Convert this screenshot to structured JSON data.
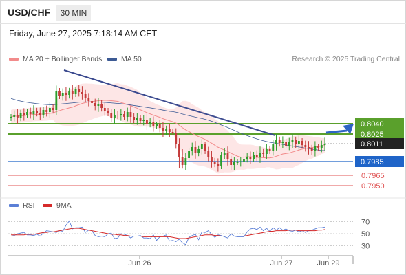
{
  "header": {
    "symbol": "USD/CHF",
    "timeframe": "30 MIN",
    "datetime": "Friday, June 27, 2025 7:18:14 AM CET"
  },
  "legend": {
    "ma_bb_label": "MA 20 + Bollinger Bands",
    "ma50_label": "MA 50",
    "credit": "Research © 2025 Trading Central"
  },
  "rsi_legend": {
    "rsi_label": "RSI",
    "ma_label": "9MA"
  },
  "colors": {
    "candle_up": "#2a9d2a",
    "candle_down": "#c43a3a",
    "ma20": "#f28b8b",
    "ma50": "#3c5a94",
    "bollinger_fill": "#fde3e3",
    "resistance": "#5aa02c",
    "pivot": "#1f64c8",
    "support": "#e05555",
    "trendline": "#3b4a8f",
    "arrow": "#2e64c4",
    "rsi": "#5b7fd6",
    "rsi_ma": "#d62b2b"
  },
  "chart_data": [
    {
      "type": "candlestick",
      "ylim": [
        0.7935,
        0.812
      ],
      "x_ticks": [
        "Jun 26",
        "Jun 27",
        "Jun 29"
      ],
      "last_price": 0.8011,
      "last_price_label": "0.8011",
      "levels": [
        {
          "value": 0.804,
          "label": "0.8040",
          "kind": "resistance"
        },
        {
          "value": 0.8025,
          "label": "0.8025",
          "kind": "resistance"
        },
        {
          "value": 0.7985,
          "label": "0.7985",
          "kind": "pivot"
        },
        {
          "value": 0.7965,
          "label": "0.7965",
          "kind": "support"
        },
        {
          "value": 0.795,
          "label": "0.7950",
          "kind": "support"
        }
      ],
      "closes": [
        0.805,
        0.8053,
        0.8049,
        0.8055,
        0.8052,
        0.8057,
        0.8054,
        0.8058,
        0.8056,
        0.8053,
        0.806,
        0.8057,
        0.8063,
        0.806,
        0.8088,
        0.808,
        0.8085,
        0.8082,
        0.8087,
        0.8083,
        0.809,
        0.8086,
        0.8084,
        0.8077,
        0.8073,
        0.807,
        0.8066,
        0.8069,
        0.8063,
        0.8059,
        0.8055,
        0.8049,
        0.8053,
        0.8052,
        0.8054,
        0.805,
        0.8057,
        0.805,
        0.8046,
        0.8048,
        0.8044,
        0.8046,
        0.804,
        0.8043,
        0.8036,
        0.8039,
        0.8034,
        0.8029,
        0.8032,
        0.8028,
        0.8027,
        0.801,
        0.7992,
        0.798,
        0.799,
        0.8,
        0.8006,
        0.7998,
        0.8003,
        0.801,
        0.8,
        0.7992,
        0.7985,
        0.7982,
        0.7978,
        0.7995,
        0.7998,
        0.7988,
        0.798,
        0.7984,
        0.7984,
        0.7985,
        0.7989,
        0.7992,
        0.7989,
        0.7995,
        0.7992,
        0.7998,
        0.7996,
        0.8003,
        0.8,
        0.801,
        0.8016,
        0.8012,
        0.8014,
        0.8008,
        0.8013,
        0.8016,
        0.801,
        0.8015,
        0.8009,
        0.8006,
        0.8004,
        0.8,
        0.8007,
        0.8005,
        0.8009,
        0.8011
      ]
    },
    {
      "type": "line",
      "name": "RSI",
      "y_ticks": [
        30,
        50,
        70
      ],
      "series": [
        {
          "name": "RSI",
          "values": [
            46,
            47,
            50,
            51,
            52,
            48,
            48,
            47,
            49,
            46,
            51,
            55,
            54,
            53,
            52,
            55,
            54,
            64,
            71,
            58,
            60,
            60,
            61,
            52,
            56,
            55,
            47,
            45,
            46,
            45,
            50,
            51,
            42,
            43,
            50,
            49,
            47,
            43,
            46,
            46,
            47,
            43,
            43,
            42,
            48,
            39,
            45,
            46,
            48,
            38,
            39,
            37,
            41,
            35,
            32,
            44,
            47,
            49,
            40,
            53,
            52,
            55,
            49,
            44,
            48,
            47,
            45,
            43,
            50,
            46,
            45,
            45,
            45,
            53,
            58,
            59,
            57,
            61,
            55,
            59,
            54,
            60,
            56,
            60,
            56,
            58,
            55,
            54,
            56,
            53,
            55,
            52,
            55,
            56,
            58,
            60,
            60,
            61
          ]
        },
        {
          "name": "9MA",
          "values": [
            48,
            48,
            48,
            48,
            48,
            49,
            49,
            49,
            50,
            51,
            52,
            52,
            53,
            53,
            54,
            55,
            56,
            57,
            58,
            59,
            59,
            59,
            58,
            57,
            56,
            55,
            54,
            53,
            52,
            51,
            50,
            49,
            49,
            48,
            48,
            47,
            47,
            46,
            46,
            46,
            46,
            45,
            45,
            45,
            45,
            45,
            45,
            45,
            45,
            45,
            44,
            43,
            42,
            42,
            42,
            43,
            44,
            45,
            46,
            47,
            48,
            48,
            48,
            47,
            47,
            46,
            46,
            46,
            46,
            46,
            46,
            46,
            46,
            47,
            48,
            49,
            50,
            51,
            52,
            53,
            54,
            54,
            55,
            55,
            55,
            55,
            56,
            56,
            56,
            55,
            55,
            55,
            55,
            55,
            55,
            56,
            56,
            57
          ]
        }
      ]
    }
  ]
}
